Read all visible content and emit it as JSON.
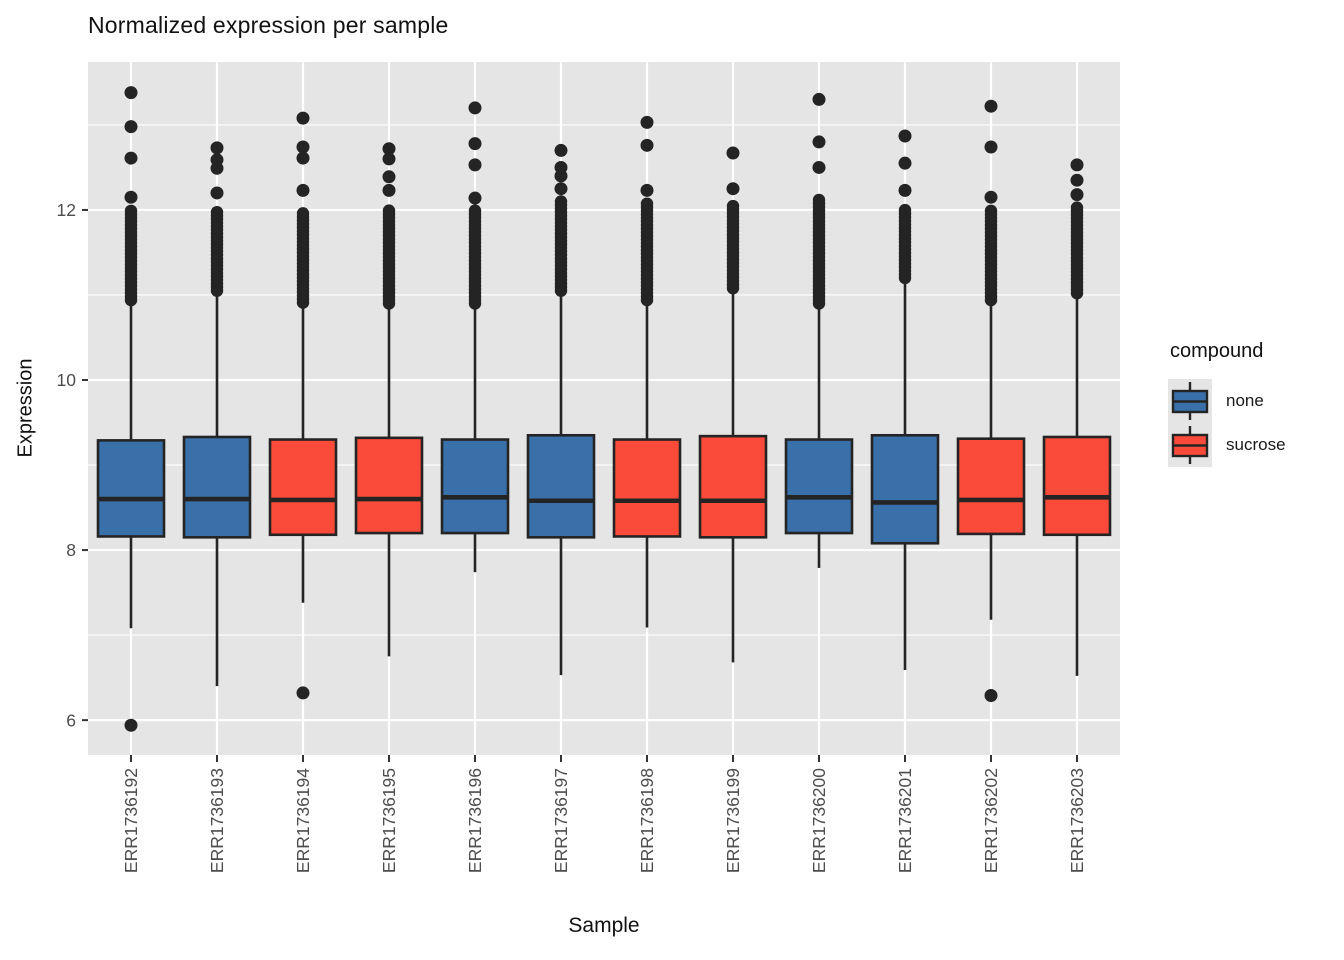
{
  "chart_data": {
    "type": "boxplot",
    "title": "Normalized expression per sample",
    "xlabel": "Sample",
    "ylabel": "Expression",
    "y_ticks": [
      6,
      8,
      10,
      12
    ],
    "y_minor_gridlines": [
      7,
      9,
      11,
      13
    ],
    "ylim": [
      5.59,
      13.74
    ],
    "grid": true,
    "colors": {
      "panel_bg": "#E5E5E5",
      "gridline": "#FFFFFF",
      "box_outline": "#242424",
      "outlier": "#242424",
      "tick_mark": "#333333",
      "tick_label": "#4D4D4D",
      "none_fill": "#3A70A9",
      "sucrose_fill": "#FA4B3A"
    },
    "legend": {
      "title": "compound",
      "position": "right",
      "entries": [
        {
          "label": "none",
          "color": "#3A70A9"
        },
        {
          "label": "sucrose",
          "color": "#FA4B3A"
        }
      ]
    },
    "samples": [
      {
        "name": "ERR1736192",
        "compound": "none",
        "q1": 8.16,
        "median": 8.6,
        "q3": 9.29,
        "whisker_low": 7.08,
        "whisker_high": 10.94,
        "outliers_high_dense": [
          10.94,
          12.02
        ],
        "outliers_high": [
          12.15,
          12.61,
          12.98,
          13.38
        ],
        "outliers_low": [
          5.94
        ]
      },
      {
        "name": "ERR1736193",
        "compound": "none",
        "q1": 8.15,
        "median": 8.6,
        "q3": 9.33,
        "whisker_low": 6.4,
        "whisker_high": 11.05,
        "outliers_high_dense": [
          11.05,
          12.0
        ],
        "outliers_high": [
          12.2,
          12.49,
          12.59,
          12.73
        ],
        "outliers_low": []
      },
      {
        "name": "ERR1736194",
        "compound": "sucrose",
        "q1": 8.18,
        "median": 8.59,
        "q3": 9.3,
        "whisker_low": 7.38,
        "whisker_high": 10.91,
        "outliers_high_dense": [
          10.91,
          12.0
        ],
        "outliers_high": [
          12.23,
          12.61,
          12.74,
          13.08
        ],
        "outliers_low": [
          6.32
        ]
      },
      {
        "name": "ERR1736195",
        "compound": "sucrose",
        "q1": 8.2,
        "median": 8.6,
        "q3": 9.32,
        "whisker_low": 6.75,
        "whisker_high": 10.9,
        "outliers_high_dense": [
          10.9,
          12.0
        ],
        "outliers_high": [
          12.23,
          12.39,
          12.6,
          12.72
        ],
        "outliers_low": []
      },
      {
        "name": "ERR1736196",
        "compound": "none",
        "q1": 8.2,
        "median": 8.62,
        "q3": 9.3,
        "whisker_low": 7.74,
        "whisker_high": 10.9,
        "outliers_high_dense": [
          10.9,
          12.0
        ],
        "outliers_high": [
          12.14,
          12.53,
          12.78,
          13.2
        ],
        "outliers_low": []
      },
      {
        "name": "ERR1736197",
        "compound": "none",
        "q1": 8.15,
        "median": 8.58,
        "q3": 9.35,
        "whisker_low": 6.53,
        "whisker_high": 11.05,
        "outliers_high_dense": [
          11.05,
          12.1
        ],
        "outliers_high": [
          12.25,
          12.4,
          12.5,
          12.7
        ],
        "outliers_low": []
      },
      {
        "name": "ERR1736198",
        "compound": "sucrose",
        "q1": 8.16,
        "median": 8.58,
        "q3": 9.3,
        "whisker_low": 7.09,
        "whisker_high": 10.94,
        "outliers_high_dense": [
          10.94,
          12.08
        ],
        "outliers_high": [
          12.23,
          12.76,
          13.03
        ],
        "outliers_low": []
      },
      {
        "name": "ERR1736199",
        "compound": "sucrose",
        "q1": 8.15,
        "median": 8.58,
        "q3": 9.34,
        "whisker_low": 6.68,
        "whisker_high": 11.08,
        "outliers_high_dense": [
          11.08,
          12.08
        ],
        "outliers_high": [
          12.25,
          12.67
        ],
        "outliers_low": []
      },
      {
        "name": "ERR1736200",
        "compound": "none",
        "q1": 8.2,
        "median": 8.62,
        "q3": 9.3,
        "whisker_low": 7.79,
        "whisker_high": 10.9,
        "outliers_high_dense": [
          10.9,
          12.15
        ],
        "outliers_high": [
          12.5,
          12.8,
          13.3
        ],
        "outliers_low": []
      },
      {
        "name": "ERR1736201",
        "compound": "none",
        "q1": 8.08,
        "median": 8.56,
        "q3": 9.35,
        "whisker_low": 6.59,
        "whisker_high": 11.2,
        "outliers_high_dense": [
          11.2,
          12.02
        ],
        "outliers_high": [
          12.23,
          12.55,
          12.87
        ],
        "outliers_low": []
      },
      {
        "name": "ERR1736202",
        "compound": "sucrose",
        "q1": 8.19,
        "median": 8.59,
        "q3": 9.31,
        "whisker_low": 7.18,
        "whisker_high": 10.94,
        "outliers_high_dense": [
          10.94,
          12.0
        ],
        "outliers_high": [
          12.15,
          12.74,
          13.22
        ],
        "outliers_low": [
          6.29
        ]
      },
      {
        "name": "ERR1736203",
        "compound": "sucrose",
        "q1": 8.18,
        "median": 8.62,
        "q3": 9.33,
        "whisker_low": 6.52,
        "whisker_high": 11.02,
        "outliers_high_dense": [
          11.02,
          12.04
        ],
        "outliers_high": [
          12.18,
          12.35,
          12.53
        ],
        "outliers_low": []
      }
    ]
  }
}
